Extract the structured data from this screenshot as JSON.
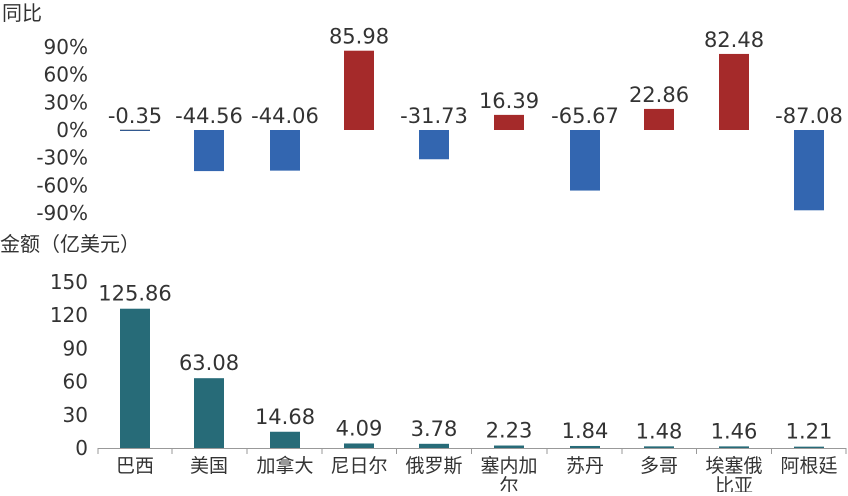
{
  "chart_data": [
    {
      "type": "bar",
      "ylabel": "同比",
      "unit": "%",
      "ylim": [
        -90,
        90
      ],
      "yticks": [
        "90%",
        "60%",
        "30%",
        "0%",
        "-30%",
        "-60%",
        "-90%"
      ],
      "yticks_values": [
        90,
        60,
        30,
        0,
        -30,
        -60,
        -90
      ],
      "categories": [
        "巴西",
        "美国",
        "加拿大",
        "尼日尔",
        "俄罗斯",
        "塞内加尔",
        "苏丹",
        "多哥",
        "埃塞俄比亚",
        "阿根廷"
      ],
      "values": [
        -0.35,
        -44.56,
        -44.06,
        85.98,
        -31.73,
        16.39,
        -65.67,
        22.86,
        82.48,
        -87.08
      ],
      "data_labels": [
        "-0.35",
        "-44.56",
        "-44.06",
        "85.98",
        "-31.73",
        "16.39",
        "-65.67",
        "22.86",
        "82.48",
        "-87.08"
      ],
      "colors": {
        "positive": "#a52a2a",
        "negative": "#3366b0",
        "zero_line": "#333333"
      }
    },
    {
      "type": "bar",
      "ylabel": "金额（亿美元）",
      "ylim": [
        0,
        150
      ],
      "yticks": [
        "150",
        "120",
        "90",
        "60",
        "30",
        "0"
      ],
      "yticks_values": [
        150,
        120,
        90,
        60,
        30,
        0
      ],
      "categories": [
        "巴西",
        "美国",
        "加拿大",
        "尼日尔",
        "俄罗斯",
        "塞内加尔",
        "苏丹",
        "多哥",
        "埃塞俄比亚",
        "阿根廷"
      ],
      "category_lines": [
        [
          "巴西"
        ],
        [
          "美国"
        ],
        [
          "加拿大"
        ],
        [
          "尼日尔"
        ],
        [
          "俄罗斯"
        ],
        [
          "塞内加",
          "尔"
        ],
        [
          "苏丹"
        ],
        [
          "多哥"
        ],
        [
          "埃塞俄",
          "比亚"
        ],
        [
          "阿根廷"
        ]
      ],
      "values": [
        125.86,
        63.08,
        14.68,
        4.09,
        3.78,
        2.23,
        1.84,
        1.48,
        1.46,
        1.21
      ],
      "data_labels": [
        "125.86",
        "63.08",
        "14.68",
        "4.09",
        "3.78",
        "2.23",
        "1.84",
        "1.48",
        "1.46",
        "1.21"
      ],
      "colors": {
        "bar": "#276b78",
        "axis": "#999999"
      }
    }
  ]
}
